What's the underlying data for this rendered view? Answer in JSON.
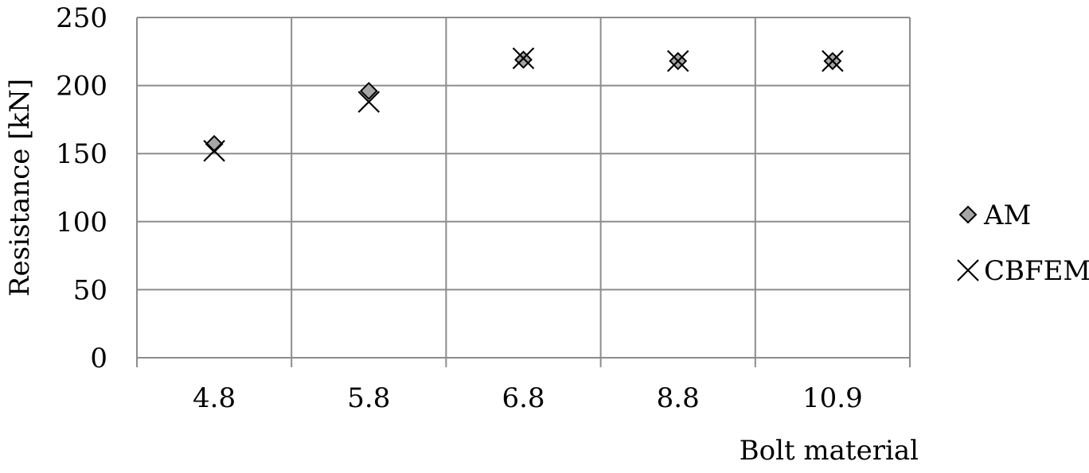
{
  "chart_data": {
    "type": "scatter",
    "title": "",
    "xlabel": "Bolt material",
    "ylabel": "Resistance [kN]",
    "categories": [
      "4.8",
      "5.8",
      "6.8",
      "8.8",
      "10.9"
    ],
    "ylim": [
      0,
      250
    ],
    "yticks": [
      0,
      50,
      100,
      150,
      200,
      250
    ],
    "grid": true,
    "legend_position": "right",
    "series": [
      {
        "name": "AM",
        "marker": "diamond",
        "color": "#a6a6a6",
        "values": [
          157,
          196,
          219,
          218,
          218
        ]
      },
      {
        "name": "CBFEM",
        "marker": "x",
        "color": "#000000",
        "values": [
          152,
          188,
          220,
          218,
          218
        ]
      }
    ]
  }
}
